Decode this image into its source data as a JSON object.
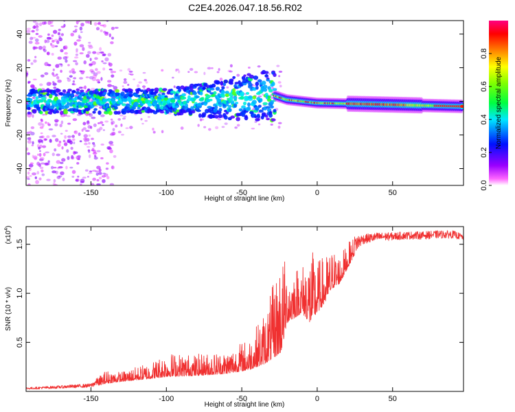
{
  "figure_title": "C2E4.2026.047.18.56.R02",
  "chart_data": [
    {
      "type": "heatmap",
      "title": "C2E4.2026.047.18.56.R02",
      "xlabel": "Height of straight line (km)",
      "ylabel": "Frequency (Hz)",
      "xlim": [
        -193,
        97
      ],
      "ylim": [
        -50,
        48
      ],
      "x_ticks": [
        -150,
        -100,
        -50,
        0,
        50
      ],
      "x_tick_labels": [
        "-150",
        "-100",
        "-50",
        "0",
        "50"
      ],
      "y_ticks": [
        40,
        20,
        0,
        -20,
        -40
      ],
      "y_tick_labels": [
        "40",
        "20",
        "0",
        "-20",
        "-40"
      ],
      "colorbar": {
        "label": "Normalized spectral amplitude",
        "range": [
          0,
          1
        ],
        "ticks": [
          0.0,
          0.2,
          0.4,
          0.6,
          0.8
        ],
        "tick_labels": [
          "0.0",
          "0.2",
          "0.4",
          "0.6",
          "0.8"
        ],
        "colormap": "rainbow (magenta-blue-cyan-green-yellow-red-pink)"
      },
      "features": {
        "main_band_center_hz": [
          [
            -190,
            0
          ],
          [
            -150,
            0
          ],
          [
            -100,
            0
          ],
          [
            -50,
            2
          ],
          [
            -30,
            4
          ],
          [
            -20,
            1
          ],
          [
            0,
            -1
          ],
          [
            50,
            -2
          ],
          [
            95,
            -3
          ]
        ],
        "scatter_region_x": [
          -190,
          -135
        ],
        "band_growth_region_x": [
          -100,
          -28
        ],
        "narrow_tail_region_x": [
          -28,
          95
        ]
      }
    },
    {
      "type": "line",
      "title": "",
      "xlabel": "Height of straight line (km)",
      "ylabel": "SNR (10 * v/v)",
      "y_multiplier_label": "(x10",
      "y_multiplier_exp": "4",
      "y_multiplier_close": ")",
      "xlim": [
        -193,
        97
      ],
      "ylim": [
        0,
        1.68
      ],
      "x_ticks": [
        -150,
        -100,
        -50,
        0,
        50
      ],
      "x_tick_labels": [
        "-150",
        "-100",
        "-50",
        "0",
        "50"
      ],
      "y_ticks": [
        0.5,
        1.0,
        1.5
      ],
      "y_tick_labels": [
        "0.5",
        "1.0",
        "1.5"
      ],
      "color": "#f03030",
      "series": [
        {
          "name": "SNR",
          "envelope_x": [
            -193,
            -170,
            -150,
            -140,
            -130,
            -110,
            -100,
            -80,
            -60,
            -45,
            -35,
            -28,
            -24,
            -20,
            -10,
            -5,
            0,
            5,
            10,
            15,
            20,
            25,
            30,
            40,
            50,
            60,
            70,
            80,
            90,
            97
          ],
          "baseline_y": [
            0.02,
            0.03,
            0.04,
            0.08,
            0.1,
            0.13,
            0.15,
            0.16,
            0.18,
            0.22,
            0.28,
            0.35,
            0.4,
            0.7,
            0.8,
            0.7,
            0.8,
            0.9,
            1.05,
            1.1,
            1.25,
            1.4,
            1.5,
            1.53,
            1.54,
            1.55,
            1.55,
            1.56,
            1.56,
            1.54
          ],
          "peak_y": [
            0.04,
            0.06,
            0.08,
            0.22,
            0.2,
            0.3,
            0.4,
            0.38,
            0.42,
            0.55,
            0.82,
            1.15,
            1.45,
            1.3,
            1.3,
            1.48,
            1.35,
            1.38,
            1.45,
            1.4,
            1.5,
            1.6,
            1.6,
            1.62,
            1.62,
            1.63,
            1.63,
            1.64,
            1.64,
            1.6
          ]
        }
      ]
    }
  ]
}
